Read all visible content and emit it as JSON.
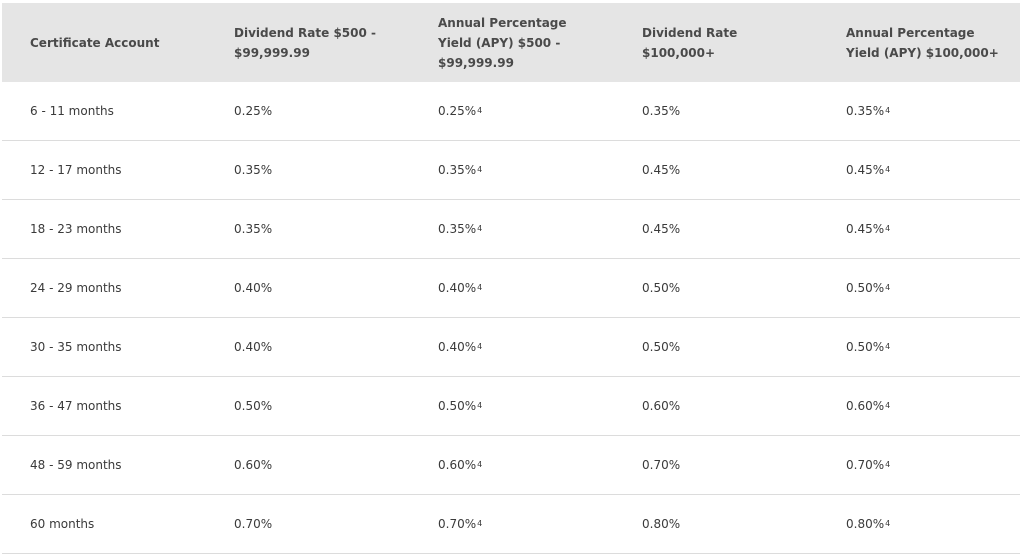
{
  "headers": [
    "Certificate Account",
    "Dividend Rate $500 - $99,999.99",
    "Annual Percentage Yield (APY) $500 - $99,999.99",
    "Dividend Rate $100,000+",
    "Annual Percentage Yield (APY) $100,000+"
  ],
  "footnote_mark": "4",
  "rows": [
    {
      "term": "6 - 11 months",
      "rate_low": "0.25%",
      "apy_low": "0.25%",
      "rate_high": "0.35%",
      "apy_high": "0.35%"
    },
    {
      "term": "12 - 17 months",
      "rate_low": "0.35%",
      "apy_low": "0.35%",
      "rate_high": "0.45%",
      "apy_high": "0.45%"
    },
    {
      "term": "18 - 23 months",
      "rate_low": "0.35%",
      "apy_low": "0.35%",
      "rate_high": "0.45%",
      "apy_high": "0.45%"
    },
    {
      "term": "24 - 29 months",
      "rate_low": "0.40%",
      "apy_low": "0.40%",
      "rate_high": "0.50%",
      "apy_high": "0.50%"
    },
    {
      "term": "30 - 35 months",
      "rate_low": "0.40%",
      "apy_low": "0.40%",
      "rate_high": "0.50%",
      "apy_high": "0.50%"
    },
    {
      "term": "36 - 47 months",
      "rate_low": "0.50%",
      "apy_low": "0.50%",
      "rate_high": "0.60%",
      "apy_high": "0.60%"
    },
    {
      "term": "48 - 59 months",
      "rate_low": "0.60%",
      "apy_low": "0.60%",
      "rate_high": "0.70%",
      "apy_high": "0.70%"
    },
    {
      "term": "60 months",
      "rate_low": "0.70%",
      "apy_low": "0.70%",
      "rate_high": "0.80%",
      "apy_high": "0.80%"
    }
  ]
}
